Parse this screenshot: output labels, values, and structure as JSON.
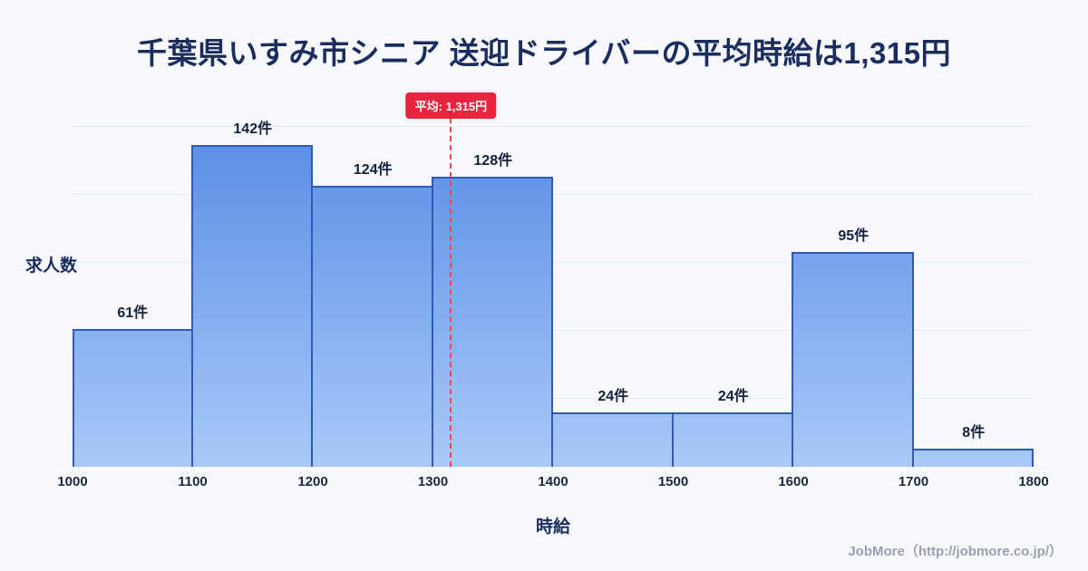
{
  "title": "千葉県いすみ市シニア 送迎ドライバーの平均時給は1,315円",
  "footer": {
    "credit": "JobMore（http://jobmore.co.jp/）"
  },
  "chart_data": {
    "type": "bar",
    "subtype": "histogram",
    "title": "千葉県いすみ市シニア 送迎ドライバーの平均時給は1,315円",
    "xlabel": "時給",
    "ylabel": "求人数",
    "categories": [
      "1000-1100",
      "1100-1200",
      "1200-1300",
      "1300-1400",
      "1400-1500",
      "1500-1600",
      "1600-1700",
      "1700-1800"
    ],
    "values": [
      61,
      142,
      124,
      128,
      24,
      24,
      95,
      8
    ],
    "value_labels": [
      "61件",
      "142件",
      "124件",
      "128件",
      "24件",
      "24件",
      "95件",
      "8件"
    ],
    "x_ticks": [
      "1000",
      "1100",
      "1200",
      "1300",
      "1400",
      "1500",
      "1600",
      "1700",
      "1800"
    ],
    "x_range": [
      1000,
      1800
    ],
    "ylim": [
      0,
      166
    ],
    "grid": true,
    "gridline_values": [
      30,
      60,
      90,
      120,
      150
    ],
    "legend_position": "none",
    "average": {
      "value": 1315,
      "label": "平均: 1,315円"
    },
    "colors": {
      "background": "#f7f9fc",
      "title_text": "#1b2d5e",
      "bar_gradient_top": "#4f86e3",
      "bar_gradient_bottom": "#a9c9f8",
      "bar_border": "#2d5cb8",
      "average_line": "#ee4656",
      "average_badge_bg": "#e8243f"
    }
  }
}
